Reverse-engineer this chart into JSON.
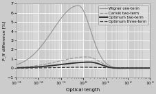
{
  "title": "",
  "xlabel": "Optical length",
  "ylabel": "P_ff difference [%]",
  "xlim": [
    0.001,
    1000.0
  ],
  "ylim": [
    -1,
    7
  ],
  "yticks": [
    -1,
    0,
    1,
    2,
    3,
    4,
    5,
    6,
    7
  ],
  "legend": [
    {
      "label": "Wigner one-term",
      "color": "#999999",
      "lw": 0.9,
      "ls": "-"
    },
    {
      "label": "Carlvik two-term",
      "color": "#999999",
      "lw": 0.9,
      "ls": "--"
    },
    {
      "label": "Optimum two-term",
      "color": "#333333",
      "lw": 1.4,
      "ls": "-"
    },
    {
      "label": "Optimum three-term",
      "color": "#333333",
      "lw": 0.9,
      "ls": "--"
    }
  ],
  "bg_color": "#cccccc",
  "grid_color": "#ffffff",
  "legend_facecolor": "#dddddd",
  "legend_edgecolor": "#888888"
}
